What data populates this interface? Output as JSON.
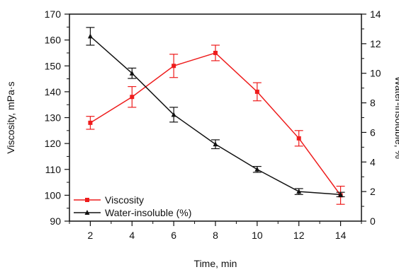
{
  "chart_data": {
    "type": "line",
    "xlabel": "Time, min",
    "ylabel_left": "Viscosity, mPa·s",
    "ylabel_right": "Water-insoluble, %",
    "x": [
      2,
      4,
      6,
      8,
      10,
      12,
      14
    ],
    "xlim": [
      1,
      15
    ],
    "xticks": [
      2,
      4,
      6,
      8,
      10,
      12,
      14
    ],
    "ylim_left": [
      90,
      170
    ],
    "yticks_left": [
      90,
      100,
      110,
      120,
      130,
      140,
      150,
      160,
      170
    ],
    "ylim_right": [
      0,
      14
    ],
    "yticks_right": [
      0,
      2,
      4,
      6,
      8,
      10,
      12,
      14
    ],
    "legend_position": "bottom-left",
    "grid": false,
    "series": [
      {
        "name": "Viscosity",
        "axis": "left",
        "color": "#ee1c1c",
        "marker": "square",
        "values": [
          128,
          138,
          150,
          155,
          140,
          122,
          100
        ],
        "errors": [
          2.5,
          4,
          4.5,
          3,
          3.5,
          3,
          3.5
        ]
      },
      {
        "name": "Water-insoluble (%)",
        "axis": "right",
        "color": "#111111",
        "marker": "triangle",
        "values": [
          12.5,
          10,
          7.2,
          5.2,
          3.5,
          2,
          1.8
        ],
        "errors": [
          0.6,
          0.35,
          0.5,
          0.3,
          0.2,
          0.2,
          0.15
        ]
      }
    ]
  }
}
